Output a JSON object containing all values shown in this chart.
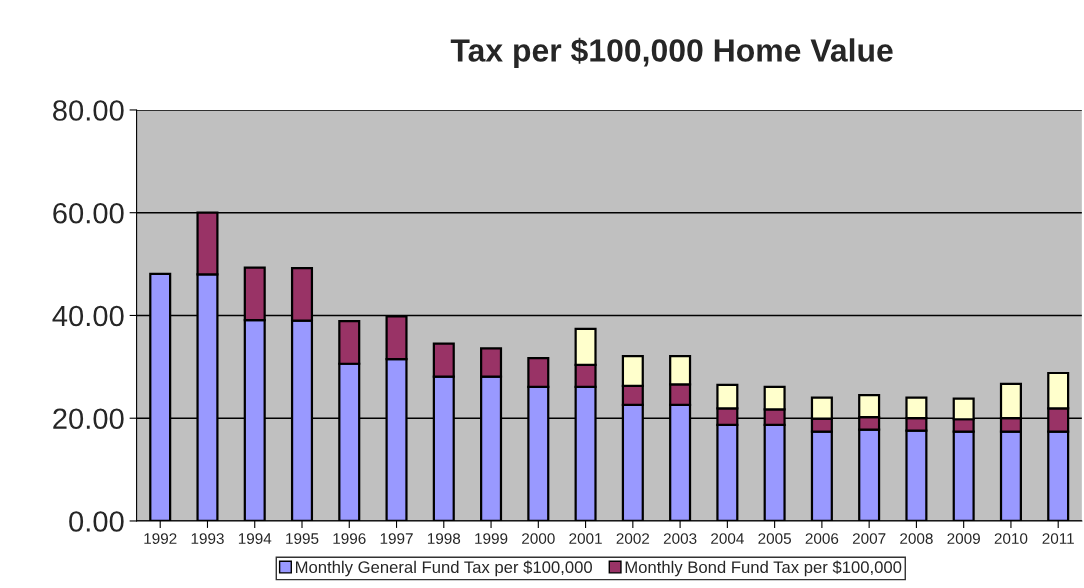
{
  "chart_data": {
    "type": "bar",
    "title": "Tax per $100,000 Home Value",
    "categories": [
      "1992",
      "1993",
      "1994",
      "1995",
      "1996",
      "1997",
      "1998",
      "1999",
      "2000",
      "2001",
      "2002",
      "2003",
      "2004",
      "2005",
      "2006",
      "2007",
      "2008",
      "2009",
      "2010",
      "2011"
    ],
    "stacked": true,
    "series": [
      {
        "name": "Monthly General Fund Tax per $100,000",
        "color": "#9999ff",
        "values": [
          48.1,
          48.0,
          39.1,
          39.0,
          30.6,
          31.5,
          28.1,
          28.1,
          26.1,
          26.1,
          22.6,
          22.6,
          18.7,
          18.7,
          17.4,
          17.8,
          17.6,
          17.4,
          17.4,
          17.4
        ]
      },
      {
        "name": "Monthly Bond Fund Tax per $100,000",
        "color": "#993366",
        "values": [
          null,
          12.0,
          10.2,
          10.2,
          8.3,
          8.3,
          6.4,
          5.5,
          5.6,
          4.3,
          3.7,
          4.0,
          3.2,
          3.0,
          2.5,
          2.4,
          2.4,
          2.4,
          2.6,
          4.5
        ]
      },
      {
        "color": "#ffffcc",
        "values": [
          null,
          null,
          null,
          null,
          null,
          null,
          null,
          null,
          null,
          7.0,
          5.8,
          5.5,
          4.6,
          4.4,
          4.1,
          4.3,
          4.0,
          4.0,
          6.7,
          6.9
        ]
      }
    ],
    "ylim": [
      0,
      80
    ],
    "yticks": [
      {
        "value": 0,
        "label": "0.00"
      },
      {
        "value": 20,
        "label": "20.00"
      },
      {
        "value": 40,
        "label": "40.00"
      },
      {
        "value": 60,
        "label": "60.00"
      },
      {
        "value": 80,
        "label": "80.00"
      }
    ],
    "grid": "y",
    "legend": "bottom"
  }
}
